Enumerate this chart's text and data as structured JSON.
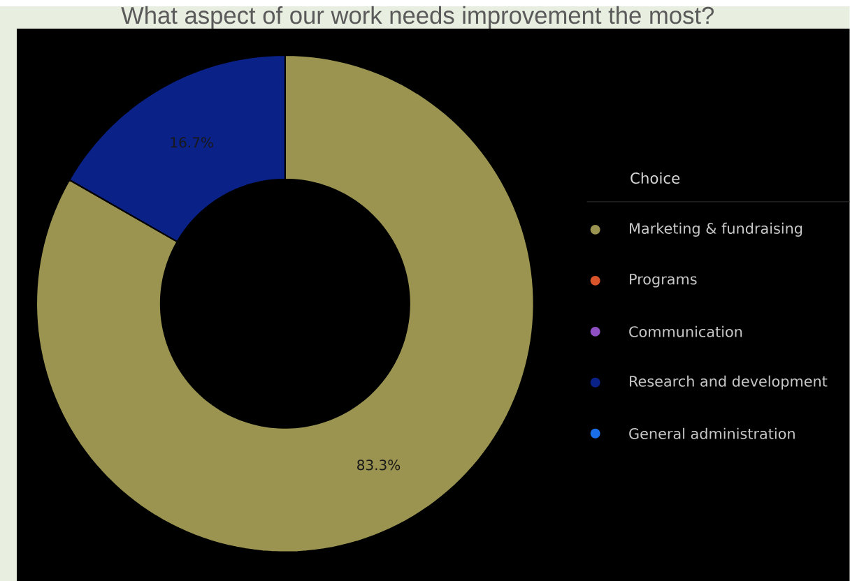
{
  "chart_data": {
    "type": "donut",
    "title": "What aspect of our work needs improvement the most?",
    "categories": [
      "Marketing & fundraising",
      "Programs",
      "Communication",
      "Research and development",
      "General administration"
    ],
    "values": [
      83.3,
      0,
      0,
      16.7,
      0
    ],
    "colors": [
      "#9a9450",
      "#d9532b",
      "#8e4fc2",
      "#0a2188",
      "#1a6fe8"
    ],
    "value_labels": [
      "83.3%",
      null,
      null,
      "16.7%",
      null
    ],
    "legend": "right",
    "legend_title": "Choice"
  }
}
